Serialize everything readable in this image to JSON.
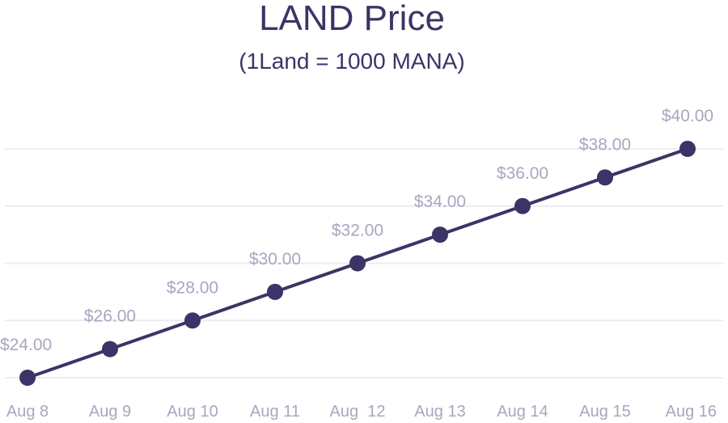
{
  "chart_data": {
    "type": "line",
    "title": "LAND Price",
    "subtitle": "(1Land = 1000 MANA)",
    "categories": [
      "Aug 8",
      "Aug 9",
      "Aug 10",
      "Aug 11",
      "Aug  12",
      "Aug 13",
      "Aug 14",
      "Aug 15",
      "Aug 16"
    ],
    "series": [
      {
        "name": "LAND Price",
        "values": [
          24,
          26,
          28,
          30,
          32,
          34,
          36,
          38,
          40
        ],
        "labels": [
          "$24.00",
          "$26.00",
          "$28.00",
          "$30.00",
          "$32.00",
          "$34.00",
          "$36.00",
          "$38.00",
          "$40.00"
        ]
      }
    ],
    "xlabel": "",
    "ylabel": "",
    "ylim": [
      24,
      40
    ],
    "gridlines": [
      24,
      28,
      32,
      36,
      40
    ],
    "grid": true,
    "legend": "none",
    "colors": {
      "series": "#3b3466",
      "labels": "#a9a6bf",
      "grid": "#ecebf0"
    }
  }
}
